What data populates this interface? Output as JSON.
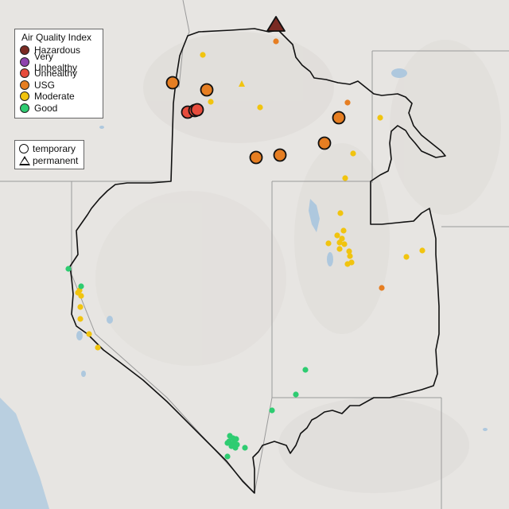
{
  "legend": {
    "title": "Air Quality Index",
    "categories": [
      {
        "label": "Hazardous",
        "color": "#7a2a22"
      },
      {
        "label": "Very Unhealthy",
        "color": "#8e44ad"
      },
      {
        "label": "Unhealthy",
        "color": "#e74c3c"
      },
      {
        "label": "USG",
        "color": "#e67e22"
      },
      {
        "label": "Moderate",
        "color": "#f1c40f"
      },
      {
        "label": "Good",
        "color": "#2ecc71"
      }
    ]
  },
  "monitor_types": {
    "temporary_label": "temporary",
    "permanent_label": "permanent"
  },
  "colors": {
    "land": "#e7e5e2",
    "ocean": "#b9cfe0",
    "lakes": "#aec8de",
    "state_border": "#9a9a9a",
    "region_border": "#111111"
  }
}
